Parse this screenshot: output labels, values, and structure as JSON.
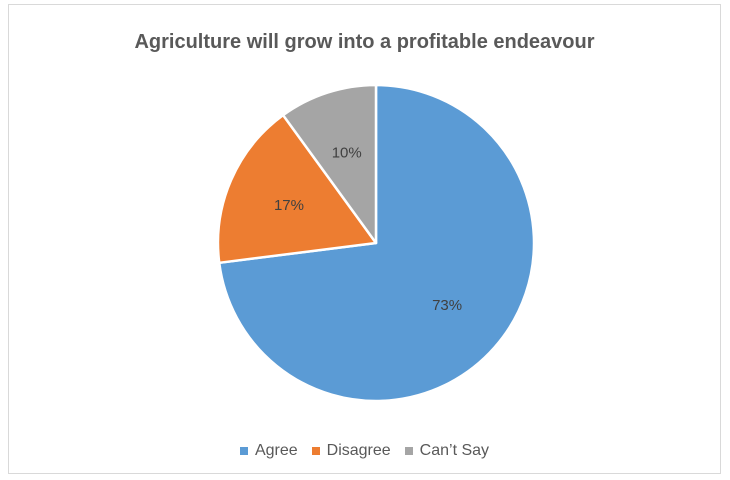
{
  "chart_data": {
    "type": "pie",
    "title": "Agriculture will grow into a profitable endeavour",
    "categories": [
      "Agree",
      "Disagree",
      "Can’t Say"
    ],
    "values": [
      73,
      17,
      10
    ],
    "value_labels": [
      "73%",
      "17%",
      "10%"
    ],
    "colors": [
      "#5b9bd5",
      "#ed7d31",
      "#a5a5a5"
    ],
    "start": "12 o'clock",
    "direction": "clockwise",
    "legend_position": "bottom"
  }
}
